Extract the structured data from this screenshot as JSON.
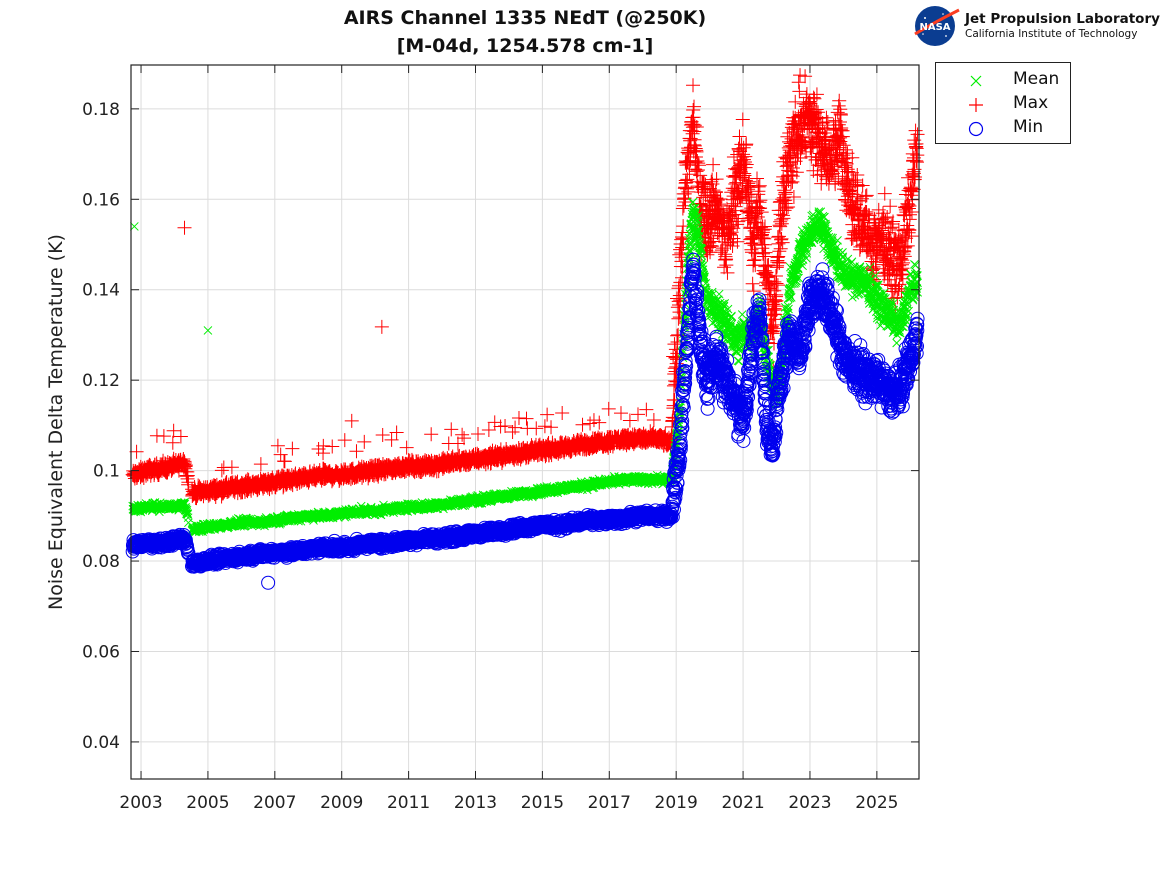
{
  "header": {
    "title_line1": "AIRS Channel 1335 NEdT (@250K)",
    "title_line2": "[M-04d, 1254.578 cm-1]",
    "logo_text": "NASA",
    "org_name": "Jet Propulsion Laboratory",
    "org_subtitle": "California Institute of Technology"
  },
  "chart_data": {
    "type": "scatter",
    "title": "AIRS Channel 1335 NEdT (@250K) [M-04d, 1254.578 cm-1]",
    "xlabel": "",
    "ylabel": "Noise Equivalent Delta Temperature (K)",
    "xlim": [
      2002.7,
      2026.26
    ],
    "ylim": [
      0.0318,
      0.1897
    ],
    "xticks": [
      "2003",
      "2005",
      "2007",
      "2009",
      "2011",
      "2013",
      "2015",
      "2017",
      "2019",
      "2021",
      "2023",
      "2025"
    ],
    "xtick_values": [
      2003,
      2005,
      2007,
      2009,
      2011,
      2013,
      2015,
      2017,
      2019,
      2021,
      2023,
      2025
    ],
    "yticks": [
      "0.04",
      "0.06",
      "0.08",
      "0.1",
      "0.12",
      "0.14",
      "0.16",
      "0.18"
    ],
    "ytick_values": [
      0.04,
      0.06,
      0.08,
      0.1,
      0.12,
      0.14,
      0.16,
      0.18
    ],
    "grid": true,
    "legend_position": "outside-top-right",
    "series": [
      {
        "name": "Mean",
        "marker": "x",
        "color": "#00ee00",
        "x": [
          2002.8,
          2003.2,
          2003.6,
          2004.0,
          2004.3,
          2004.5,
          2005.0,
          2005.5,
          2006.0,
          2006.5,
          2007.0,
          2007.5,
          2008.0,
          2008.5,
          2009.0,
          2009.5,
          2010.0,
          2010.5,
          2011.0,
          2011.5,
          2012.0,
          2012.5,
          2013.0,
          2013.5,
          2014.0,
          2014.5,
          2015.0,
          2015.5,
          2016.0,
          2016.5,
          2017.0,
          2017.5,
          2018.0,
          2018.5,
          2018.85,
          2019.1,
          2019.3,
          2019.5,
          2019.7,
          2019.9,
          2020.2,
          2020.5,
          2020.8,
          2021.0,
          2021.3,
          2021.5,
          2021.7,
          2021.9,
          2022.1,
          2022.4,
          2022.7,
          2023.0,
          2023.3,
          2023.6,
          2023.9,
          2024.2,
          2024.5,
          2024.8,
          2025.1,
          2025.4,
          2025.7,
          2026.0,
          2026.2
        ],
        "y": [
          0.0915,
          0.092,
          0.092,
          0.092,
          0.0925,
          0.087,
          0.0875,
          0.088,
          0.0885,
          0.0885,
          0.089,
          0.0895,
          0.09,
          0.09,
          0.0905,
          0.091,
          0.091,
          0.0915,
          0.092,
          0.092,
          0.0925,
          0.093,
          0.0935,
          0.094,
          0.0945,
          0.095,
          0.0955,
          0.096,
          0.0965,
          0.097,
          0.0975,
          0.098,
          0.098,
          0.098,
          0.098,
          0.112,
          0.14,
          0.158,
          0.15,
          0.138,
          0.135,
          0.133,
          0.128,
          0.131,
          0.13,
          0.135,
          0.125,
          0.118,
          0.12,
          0.14,
          0.148,
          0.152,
          0.155,
          0.15,
          0.145,
          0.142,
          0.143,
          0.14,
          0.137,
          0.134,
          0.132,
          0.14,
          0.142
        ]
      },
      {
        "name": "Max",
        "marker": "+",
        "color": "#ff0000",
        "x": [
          2002.8,
          2003.2,
          2003.6,
          2004.0,
          2004.3,
          2004.5,
          2005.0,
          2005.5,
          2006.0,
          2006.5,
          2007.0,
          2007.5,
          2008.0,
          2008.5,
          2009.0,
          2009.5,
          2010.0,
          2010.5,
          2011.0,
          2011.5,
          2012.0,
          2012.5,
          2013.0,
          2013.5,
          2014.0,
          2014.5,
          2015.0,
          2015.5,
          2016.0,
          2016.5,
          2017.0,
          2017.5,
          2018.0,
          2018.5,
          2018.85,
          2019.1,
          2019.3,
          2019.5,
          2019.7,
          2019.9,
          2020.2,
          2020.5,
          2020.8,
          2021.0,
          2021.3,
          2021.5,
          2021.7,
          2021.9,
          2022.1,
          2022.4,
          2022.7,
          2023.0,
          2023.3,
          2023.6,
          2023.9,
          2024.2,
          2024.5,
          2024.8,
          2025.1,
          2025.4,
          2025.7,
          2026.0,
          2026.2
        ],
        "y": [
          0.099,
          0.1,
          0.1005,
          0.101,
          0.102,
          0.095,
          0.0955,
          0.096,
          0.0965,
          0.097,
          0.0975,
          0.098,
          0.0985,
          0.099,
          0.099,
          0.0995,
          0.1,
          0.1005,
          0.101,
          0.101,
          0.1015,
          0.102,
          0.1025,
          0.103,
          0.1035,
          0.104,
          0.1045,
          0.105,
          0.1055,
          0.106,
          0.1065,
          0.107,
          0.107,
          0.107,
          0.106,
          0.14,
          0.165,
          0.178,
          0.16,
          0.155,
          0.158,
          0.15,
          0.162,
          0.17,
          0.15,
          0.16,
          0.142,
          0.13,
          0.155,
          0.17,
          0.175,
          0.178,
          0.172,
          0.168,
          0.175,
          0.16,
          0.155,
          0.15,
          0.152,
          0.148,
          0.145,
          0.16,
          0.172
        ]
      },
      {
        "name": "Min",
        "marker": "o",
        "color": "#0000ee",
        "x": [
          2002.8,
          2003.2,
          2003.6,
          2004.0,
          2004.3,
          2004.5,
          2005.0,
          2005.5,
          2006.0,
          2006.5,
          2007.0,
          2007.5,
          2008.0,
          2008.5,
          2009.0,
          2009.5,
          2010.0,
          2010.5,
          2011.0,
          2011.5,
          2012.0,
          2012.5,
          2013.0,
          2013.5,
          2014.0,
          2014.5,
          2015.0,
          2015.5,
          2016.0,
          2016.5,
          2017.0,
          2017.5,
          2018.0,
          2018.5,
          2018.85,
          2019.1,
          2019.3,
          2019.5,
          2019.7,
          2019.9,
          2020.2,
          2020.5,
          2020.8,
          2021.0,
          2021.3,
          2021.5,
          2021.7,
          2021.9,
          2022.1,
          2022.4,
          2022.7,
          2023.0,
          2023.3,
          2023.6,
          2023.9,
          2024.2,
          2024.5,
          2024.8,
          2025.1,
          2025.4,
          2025.7,
          2026.0,
          2026.2
        ],
        "y": [
          0.0835,
          0.084,
          0.084,
          0.0845,
          0.085,
          0.0795,
          0.08,
          0.0805,
          0.081,
          0.0815,
          0.082,
          0.082,
          0.0825,
          0.083,
          0.083,
          0.0835,
          0.084,
          0.084,
          0.0845,
          0.085,
          0.085,
          0.0855,
          0.086,
          0.0865,
          0.087,
          0.0875,
          0.088,
          0.088,
          0.0885,
          0.089,
          0.089,
          0.0895,
          0.09,
          0.09,
          0.09,
          0.105,
          0.125,
          0.145,
          0.13,
          0.12,
          0.125,
          0.12,
          0.115,
          0.11,
          0.13,
          0.135,
          0.11,
          0.105,
          0.12,
          0.13,
          0.125,
          0.138,
          0.14,
          0.135,
          0.128,
          0.123,
          0.122,
          0.12,
          0.12,
          0.117,
          0.118,
          0.125,
          0.13
        ]
      }
    ],
    "outliers": [
      {
        "series": "Mean",
        "x": 2002.8,
        "y": 0.154
      },
      {
        "series": "Mean",
        "x": 2005.0,
        "y": 0.131
      },
      {
        "series": "Max",
        "x": 2004.3,
        "y": 0.1537
      },
      {
        "series": "Max",
        "x": 2010.2,
        "y": 0.1318
      },
      {
        "series": "Max",
        "x": 2009.3,
        "y": 0.111
      },
      {
        "series": "Min",
        "x": 2006.8,
        "y": 0.0752
      }
    ]
  },
  "legend": {
    "items": [
      {
        "label": "Mean",
        "marker": "x",
        "color": "#00ee00"
      },
      {
        "label": "Max",
        "marker": "+",
        "color": "#ff0000"
      },
      {
        "label": "Min",
        "marker": "o",
        "color": "#0000ee"
      }
    ]
  }
}
